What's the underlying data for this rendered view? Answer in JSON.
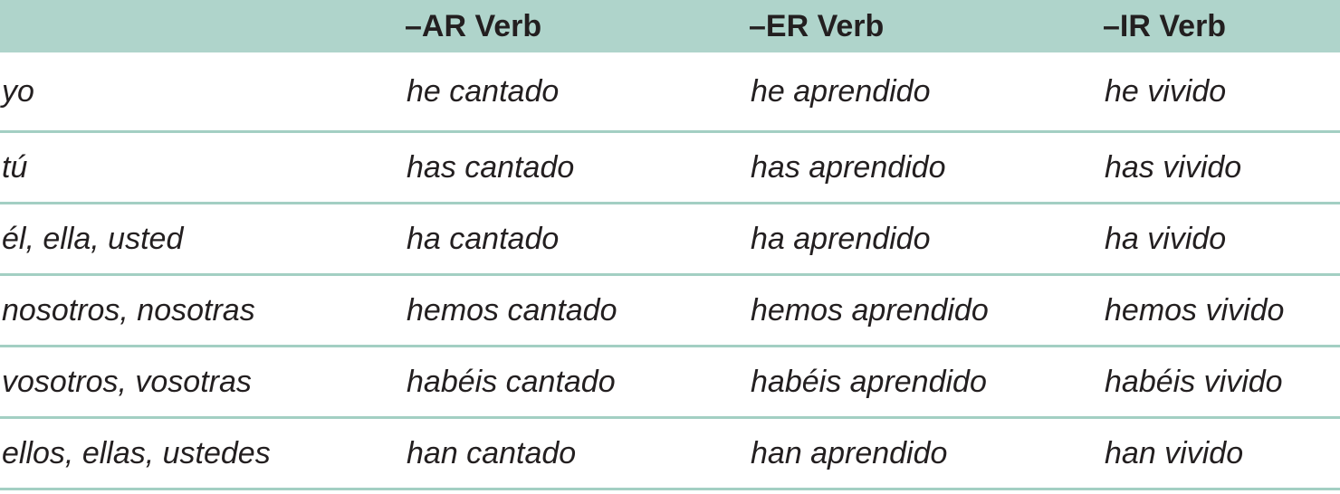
{
  "header": [
    "",
    "–AR Verb",
    "–ER Verb",
    "–IR Verb"
  ],
  "rows": [
    [
      "yo",
      "he cantado",
      "he aprendido",
      "he vivido"
    ],
    [
      "tú",
      "has cantado",
      "has aprendido",
      "has vivido"
    ],
    [
      "él, ella, usted",
      "ha cantado",
      "ha aprendido",
      "ha vivido"
    ],
    [
      "nosotros, nosotras",
      "hemos cantado",
      "hemos aprendido",
      "hemos vivido"
    ],
    [
      "vosotros, vosotras",
      "habéis cantado",
      "habéis aprendido",
      "habéis vivido"
    ],
    [
      "ellos, ellas, ustedes",
      "han cantado",
      "han aprendido",
      "han vivido"
    ]
  ],
  "colors": {
    "header_bg": "#afd4cb",
    "rule": "#a3cfc3",
    "text": "#231f20"
  }
}
